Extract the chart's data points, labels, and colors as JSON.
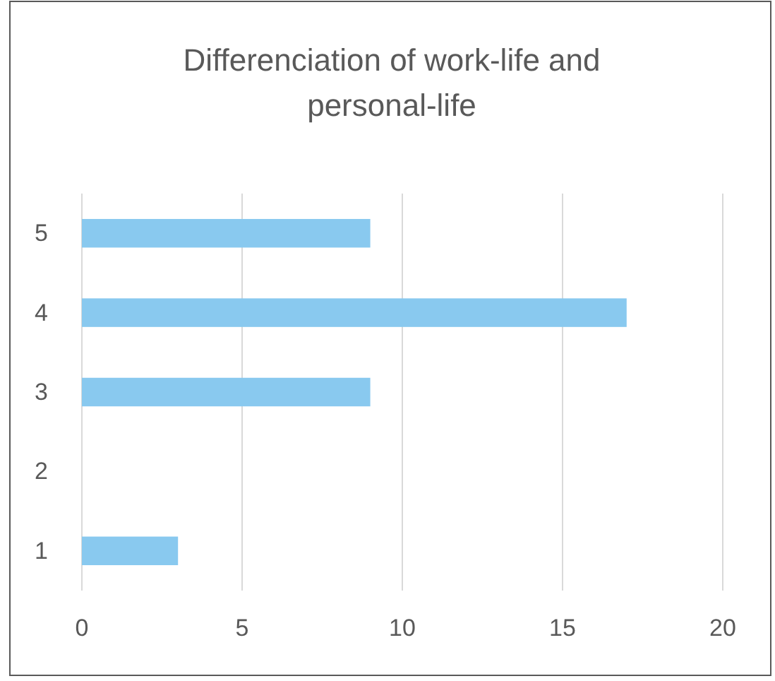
{
  "chart_data": {
    "type": "bar",
    "orientation": "horizontal",
    "title": "Differenciation of work-life and personal-life",
    "categories": [
      "5",
      "4",
      "3",
      "2",
      "1"
    ],
    "values": [
      9,
      17,
      9,
      0,
      3
    ],
    "color": "#89c9ef",
    "xlim": [
      0,
      20
    ],
    "xticks": [
      0,
      5,
      10,
      15,
      20
    ],
    "grid": "x"
  }
}
